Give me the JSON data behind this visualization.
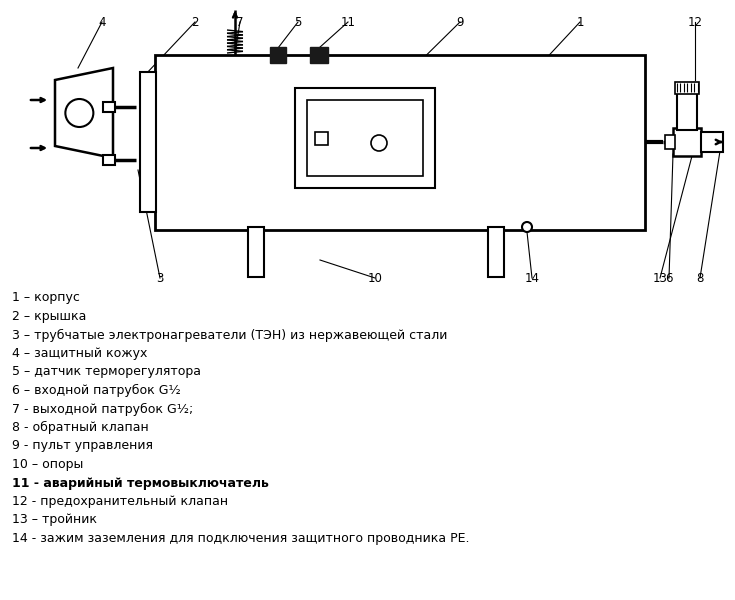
{
  "bg_color": "#ffffff",
  "line_color": "#000000",
  "legend_items": [
    "1 – корпус",
    "2 – крышка",
    "3 – трубчатые электронагреватели (ТЭН) из нержавеющей стали",
    "4 – защитный кожух",
    "5 – датчик терморегулятора",
    "6 – входной патрубок G½",
    "7 - выходной патрубок G½;",
    "8 - обратный клапан",
    "9 - пульт управления",
    "10 – опоры",
    "11 - аварийный термовыключатель",
    "12 - предохранительный клапан",
    "13 – тройник",
    "14 - зажим заземления для подключения защитного проводника PE."
  ],
  "bold_items": [
    11
  ]
}
